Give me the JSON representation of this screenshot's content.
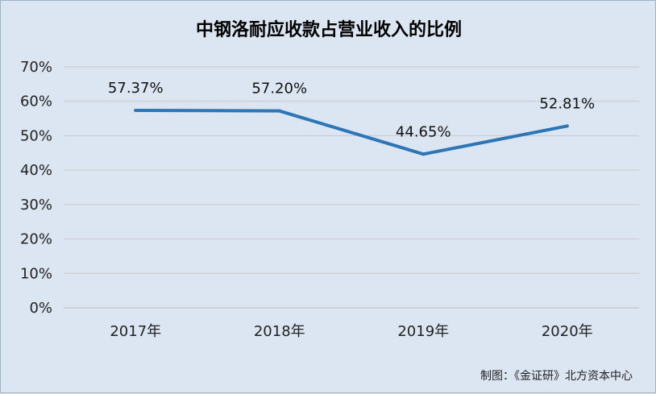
{
  "chart_data": {
    "type": "line",
    "title": "中钢洛耐应收款占营业收入的比例",
    "categories": [
      "2017年",
      "2018年",
      "2019年",
      "2020年"
    ],
    "series": [
      {
        "values": [
          57.37,
          57.2,
          44.65,
          52.81
        ]
      }
    ],
    "data_labels": [
      "57.37%",
      "57.20%",
      "44.65%",
      "52.81%"
    ],
    "yticks": [
      "0%",
      "10%",
      "20%",
      "30%",
      "40%",
      "50%",
      "60%",
      "70%"
    ],
    "ylim": [
      0,
      70
    ],
    "grid": true,
    "line_color": "#2e75b6"
  },
  "source": "制图：《金证研》北方资本中心"
}
